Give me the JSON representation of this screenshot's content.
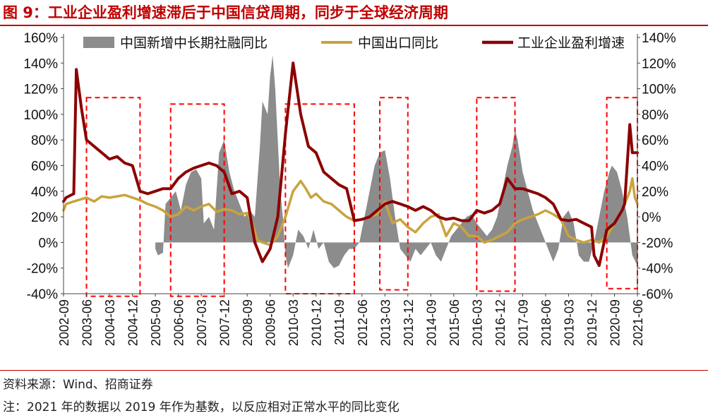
{
  "figure": {
    "title": "图 9：工业企业盈利增速滞后于中国信贷周期，同步于全球经济周期",
    "source": "资料来源：Wind、招商证券",
    "footnote": "注：2021 年的数据以 2019 年作为基数，以反应相对正常水平的同比变化"
  },
  "colors": {
    "credit": "#8c8c8c",
    "exports": "#c9a33d",
    "profit": "#8b0000",
    "box": "#ff0000",
    "title": "#c00000"
  },
  "chart_data": {
    "type": "line",
    "title": "工业企业盈利增速滞后于中国信贷周期，同步于全球经济周期",
    "x_ticks": [
      "2002-09",
      "2003-06",
      "2004-03",
      "2004-12",
      "2005-09",
      "2006-06",
      "2007-03",
      "2007-12",
      "2008-09",
      "2009-06",
      "2010-03",
      "2010-12",
      "2011-09",
      "2012-06",
      "2013-03",
      "2013-12",
      "2014-09",
      "2015-06",
      "2016-03",
      "2016-12",
      "2017-09",
      "2018-06",
      "2019-03",
      "2019-12",
      "2020-09",
      "2021-06"
    ],
    "x_start": "2002-09",
    "x_end": "2021-06",
    "y_left": {
      "ticks": [
        "-40%",
        "-20%",
        "0%",
        "20%",
        "40%",
        "60%",
        "80%",
        "100%",
        "120%",
        "140%",
        "160%"
      ],
      "range": [
        -40,
        160
      ]
    },
    "y_right": {
      "ticks": [
        "-60%",
        "-40%",
        "-20%",
        "0%",
        "20%",
        "40%",
        "60%",
        "80%",
        "100%",
        "120%",
        "140%"
      ],
      "range": [
        -60,
        140
      ]
    },
    "series": [
      {
        "name": "中国新增中长期社融同比",
        "type": "area",
        "axis": "left",
        "points": [
          [
            "2005-09",
            -5
          ],
          [
            "2005-10",
            -10
          ],
          [
            "2005-12",
            -8
          ],
          [
            "2006-01",
            30
          ],
          [
            "2006-03",
            35
          ],
          [
            "2006-05",
            40
          ],
          [
            "2006-07",
            25
          ],
          [
            "2006-09",
            45
          ],
          [
            "2006-11",
            55
          ],
          [
            "2007-01",
            57
          ],
          [
            "2007-03",
            50
          ],
          [
            "2007-04",
            15
          ],
          [
            "2007-06",
            20
          ],
          [
            "2007-08",
            10
          ],
          [
            "2007-10",
            70
          ],
          [
            "2007-11",
            75
          ],
          [
            "2007-12",
            80
          ],
          [
            "2008-02",
            55
          ],
          [
            "2008-04",
            40
          ],
          [
            "2008-06",
            30
          ],
          [
            "2008-08",
            20
          ],
          [
            "2008-10",
            25
          ],
          [
            "2008-12",
            20
          ],
          [
            "2009-02",
            75
          ],
          [
            "2009-03",
            110
          ],
          [
            "2009-05",
            100
          ],
          [
            "2009-06",
            130
          ],
          [
            "2009-07",
            146
          ],
          [
            "2009-08",
            120
          ],
          [
            "2009-09",
            80
          ],
          [
            "2009-10",
            40
          ],
          [
            "2009-11",
            20
          ],
          [
            "2009-12",
            -10
          ],
          [
            "2010-01",
            -20
          ],
          [
            "2010-03",
            -10
          ],
          [
            "2010-05",
            10
          ],
          [
            "2010-07",
            5
          ],
          [
            "2010-09",
            -5
          ],
          [
            "2010-11",
            10
          ],
          [
            "2011-01",
            -5
          ],
          [
            "2011-03",
            0
          ],
          [
            "2011-05",
            -15
          ],
          [
            "2011-07",
            -20
          ],
          [
            "2011-09",
            -18
          ],
          [
            "2011-11",
            -10
          ],
          [
            "2012-01",
            -5
          ],
          [
            "2012-03",
            -5
          ],
          [
            "2012-05",
            0
          ],
          [
            "2012-07",
            20
          ],
          [
            "2012-09",
            40
          ],
          [
            "2012-11",
            60
          ],
          [
            "2013-01",
            70
          ],
          [
            "2013-03",
            72
          ],
          [
            "2013-05",
            50
          ],
          [
            "2013-07",
            20
          ],
          [
            "2013-09",
            -5
          ],
          [
            "2013-11",
            -10
          ],
          [
            "2014-01",
            -15
          ],
          [
            "2014-03",
            -5
          ],
          [
            "2014-05",
            -10
          ],
          [
            "2014-07",
            -5
          ],
          [
            "2014-09",
            0
          ],
          [
            "2014-11",
            -10
          ],
          [
            "2015-01",
            -15
          ],
          [
            "2015-03",
            -5
          ],
          [
            "2015-05",
            5
          ],
          [
            "2015-07",
            10
          ],
          [
            "2015-09",
            15
          ],
          [
            "2015-11",
            20
          ],
          [
            "2016-01",
            22
          ],
          [
            "2016-03",
            15
          ],
          [
            "2016-05",
            10
          ],
          [
            "2016-07",
            5
          ],
          [
            "2016-09",
            10
          ],
          [
            "2016-11",
            20
          ],
          [
            "2017-01",
            40
          ],
          [
            "2017-03",
            60
          ],
          [
            "2017-05",
            75
          ],
          [
            "2017-06",
            88
          ],
          [
            "2017-07",
            80
          ],
          [
            "2017-09",
            55
          ],
          [
            "2017-11",
            40
          ],
          [
            "2018-01",
            25
          ],
          [
            "2018-03",
            15
          ],
          [
            "2018-05",
            5
          ],
          [
            "2018-07",
            -5
          ],
          [
            "2018-09",
            -15
          ],
          [
            "2018-11",
            -5
          ],
          [
            "2019-01",
            20
          ],
          [
            "2019-03",
            25
          ],
          [
            "2019-05",
            15
          ],
          [
            "2019-07",
            -10
          ],
          [
            "2019-09",
            -15
          ],
          [
            "2019-11",
            -15
          ],
          [
            "2020-01",
            0
          ],
          [
            "2020-03",
            20
          ],
          [
            "2020-05",
            40
          ],
          [
            "2020-07",
            55
          ],
          [
            "2020-08",
            60
          ],
          [
            "2020-10",
            55
          ],
          [
            "2020-12",
            40
          ],
          [
            "2021-02",
            20
          ],
          [
            "2021-04",
            -10
          ],
          [
            "2021-06",
            -18
          ]
        ]
      },
      {
        "name": "中国出口同比",
        "type": "line",
        "axis": "right",
        "points": [
          [
            "2002-09",
            5
          ],
          [
            "2002-10",
            10
          ],
          [
            "2003-01",
            12
          ],
          [
            "2003-06",
            15
          ],
          [
            "2003-09",
            12
          ],
          [
            "2003-12",
            16
          ],
          [
            "2004-03",
            15
          ],
          [
            "2004-06",
            16
          ],
          [
            "2004-09",
            17
          ],
          [
            "2004-12",
            15
          ],
          [
            "2005-03",
            13
          ],
          [
            "2005-06",
            10
          ],
          [
            "2005-09",
            8
          ],
          [
            "2005-12",
            5
          ],
          [
            "2006-03",
            0
          ],
          [
            "2006-06",
            2
          ],
          [
            "2006-09",
            8
          ],
          [
            "2006-12",
            5
          ],
          [
            "2007-03",
            8
          ],
          [
            "2007-06",
            10
          ],
          [
            "2007-09",
            4
          ],
          [
            "2007-12",
            6
          ],
          [
            "2008-03",
            5
          ],
          [
            "2008-06",
            2
          ],
          [
            "2008-09",
            3
          ],
          [
            "2008-11",
            -5
          ],
          [
            "2009-01",
            -18
          ],
          [
            "2009-03",
            -20
          ],
          [
            "2009-06",
            -22
          ],
          [
            "2009-09",
            -15
          ],
          [
            "2009-12",
            0
          ],
          [
            "2010-03",
            20
          ],
          [
            "2010-06",
            28
          ],
          [
            "2010-08",
            22
          ],
          [
            "2010-10",
            15
          ],
          [
            "2010-12",
            18
          ],
          [
            "2011-03",
            12
          ],
          [
            "2011-06",
            10
          ],
          [
            "2011-09",
            5
          ],
          [
            "2011-12",
            0
          ],
          [
            "2012-03",
            -3
          ],
          [
            "2012-06",
            -2
          ],
          [
            "2012-09",
            0
          ],
          [
            "2012-12",
            2
          ],
          [
            "2013-03",
            12
          ],
          [
            "2013-06",
            -5
          ],
          [
            "2013-09",
            -2
          ],
          [
            "2013-12",
            -8
          ],
          [
            "2014-03",
            -12
          ],
          [
            "2014-06",
            -5
          ],
          [
            "2014-09",
            0
          ],
          [
            "2014-12",
            2
          ],
          [
            "2015-03",
            -15
          ],
          [
            "2015-06",
            -5
          ],
          [
            "2015-09",
            -8
          ],
          [
            "2015-12",
            -15
          ],
          [
            "2016-03",
            -15
          ],
          [
            "2016-06",
            -20
          ],
          [
            "2016-09",
            -18
          ],
          [
            "2016-12",
            -15
          ],
          [
            "2017-03",
            -12
          ],
          [
            "2017-06",
            -5
          ],
          [
            "2017-09",
            -2
          ],
          [
            "2017-12",
            0
          ],
          [
            "2018-03",
            2
          ],
          [
            "2018-06",
            5
          ],
          [
            "2018-09",
            2
          ],
          [
            "2018-12",
            -2
          ],
          [
            "2019-03",
            -15
          ],
          [
            "2019-06",
            -18
          ],
          [
            "2019-09",
            -20
          ],
          [
            "2019-12",
            -18
          ],
          [
            "2020-03",
            -20
          ],
          [
            "2020-06",
            -15
          ],
          [
            "2020-09",
            -5
          ],
          [
            "2020-12",
            5
          ],
          [
            "2021-03",
            20
          ],
          [
            "2021-04",
            30
          ],
          [
            "2021-05",
            15
          ],
          [
            "2021-06",
            10
          ]
        ]
      },
      {
        "name": "工业企业盈利增速",
        "type": "line",
        "axis": "right",
        "points": [
          [
            "2002-09",
            12
          ],
          [
            "2002-10",
            15
          ],
          [
            "2003-01",
            18
          ],
          [
            "2003-02",
            115
          ],
          [
            "2003-04",
            85
          ],
          [
            "2003-06",
            60
          ],
          [
            "2003-09",
            55
          ],
          [
            "2003-12",
            50
          ],
          [
            "2004-03",
            45
          ],
          [
            "2004-06",
            47
          ],
          [
            "2004-09",
            42
          ],
          [
            "2004-12",
            40
          ],
          [
            "2005-03",
            20
          ],
          [
            "2005-06",
            18
          ],
          [
            "2005-09",
            20
          ],
          [
            "2005-12",
            22
          ],
          [
            "2006-03",
            22
          ],
          [
            "2006-06",
            30
          ],
          [
            "2006-09",
            35
          ],
          [
            "2006-12",
            38
          ],
          [
            "2007-03",
            40
          ],
          [
            "2007-06",
            42
          ],
          [
            "2007-09",
            40
          ],
          [
            "2007-12",
            35
          ],
          [
            "2008-03",
            18
          ],
          [
            "2008-06",
            20
          ],
          [
            "2008-09",
            15
          ],
          [
            "2008-12",
            -20
          ],
          [
            "2009-03",
            -35
          ],
          [
            "2009-06",
            -25
          ],
          [
            "2009-09",
            0
          ],
          [
            "2009-12",
            65
          ],
          [
            "2010-03",
            120
          ],
          [
            "2010-06",
            80
          ],
          [
            "2010-09",
            55
          ],
          [
            "2010-12",
            50
          ],
          [
            "2011-03",
            35
          ],
          [
            "2011-06",
            30
          ],
          [
            "2011-09",
            25
          ],
          [
            "2011-12",
            22
          ],
          [
            "2012-03",
            -3
          ],
          [
            "2012-06",
            -2
          ],
          [
            "2012-09",
            0
          ],
          [
            "2012-12",
            5
          ],
          [
            "2013-03",
            10
          ],
          [
            "2013-06",
            12
          ],
          [
            "2013-09",
            10
          ],
          [
            "2013-12",
            8
          ],
          [
            "2014-03",
            5
          ],
          [
            "2014-06",
            8
          ],
          [
            "2014-09",
            5
          ],
          [
            "2014-12",
            0
          ],
          [
            "2015-03",
            -2
          ],
          [
            "2015-06",
            -1
          ],
          [
            "2015-09",
            -3
          ],
          [
            "2015-12",
            -3
          ],
          [
            "2016-03",
            5
          ],
          [
            "2016-06",
            3
          ],
          [
            "2016-09",
            5
          ],
          [
            "2016-12",
            10
          ],
          [
            "2017-03",
            30
          ],
          [
            "2017-06",
            22
          ],
          [
            "2017-09",
            22
          ],
          [
            "2017-12",
            20
          ],
          [
            "2018-03",
            18
          ],
          [
            "2018-06",
            15
          ],
          [
            "2018-09",
            10
          ],
          [
            "2018-12",
            -2
          ],
          [
            "2019-03",
            -3
          ],
          [
            "2019-06",
            -2
          ],
          [
            "2019-09",
            -5
          ],
          [
            "2019-12",
            -8
          ],
          [
            "2020-01",
            -30
          ],
          [
            "2020-03",
            -38
          ],
          [
            "2020-06",
            -10
          ],
          [
            "2020-09",
            -5
          ],
          [
            "2020-12",
            5
          ],
          [
            "2021-01",
            10
          ],
          [
            "2021-03",
            72
          ],
          [
            "2021-04",
            50
          ],
          [
            "2021-06",
            50
          ]
        ]
      }
    ],
    "highlight_boxes": [
      {
        "x": [
          "2003-06",
          "2005-03"
        ],
        "y": [
          -42,
          113
        ]
      },
      {
        "x": [
          "2006-03",
          "2007-12"
        ],
        "y": [
          -42,
          108
        ]
      },
      {
        "x": [
          "2009-12",
          "2012-03"
        ],
        "y": [
          -40,
          108
        ]
      },
      {
        "x": [
          "2013-01",
          "2013-12"
        ],
        "y": [
          -37,
          113
        ]
      },
      {
        "x": [
          "2016-03",
          "2017-06"
        ],
        "y": [
          -38,
          113
        ]
      },
      {
        "x": [
          "2020-06",
          "2021-06"
        ],
        "y": [
          -36,
          113
        ]
      }
    ],
    "legend_location": "top"
  }
}
